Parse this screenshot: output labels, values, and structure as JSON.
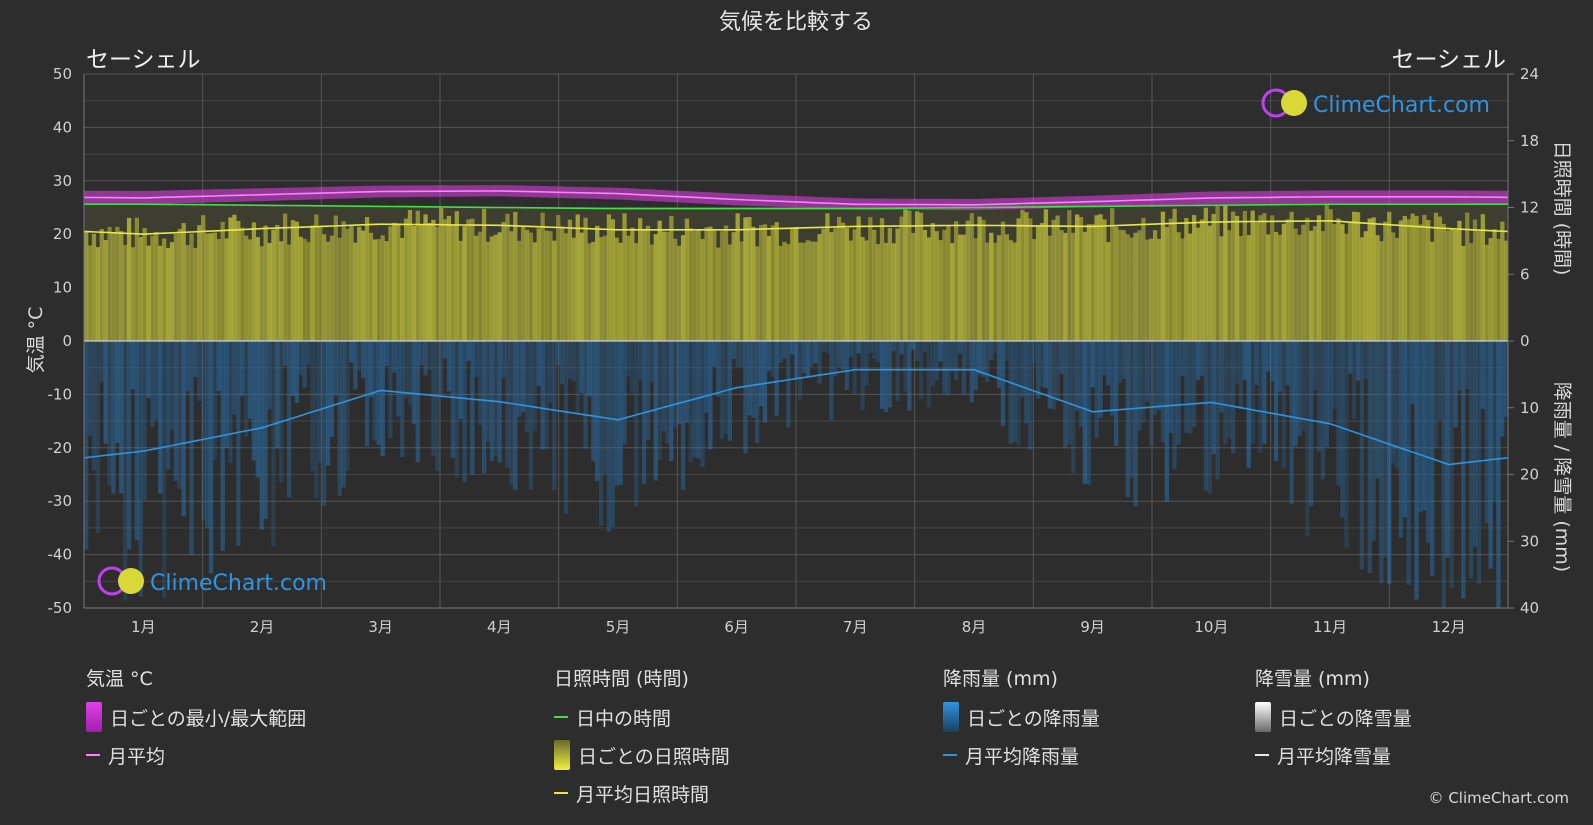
{
  "title": "気候を比較する",
  "location_left": "セーシェル",
  "location_right": "セーシェル",
  "logo_text": "ClimeChart.com",
  "copyright": "© ClimeChart.com",
  "colors": {
    "background": "#2d2d2d",
    "temp_range": "#e040e8",
    "temp_mean": "#ff80ff",
    "daylight": "#44dd44",
    "sunshine_fill": "#b8b83a",
    "sunshine_mean": "#e8e84a",
    "rain_fill": "#2a6ea8",
    "rain_mean": "#2f95e0",
    "logo_blue": "#2f95e0"
  },
  "legend": {
    "temperature": {
      "title": "気温 °C",
      "range": "日ごとの最小/最大範囲",
      "mean": "月平均"
    },
    "sunshine": {
      "title": "日照時間 (時間)",
      "daylight": "日中の時間",
      "daily": "日ごとの日照時間",
      "mean": "月平均日照時間"
    },
    "rain": {
      "title": "降雨量 (mm)",
      "daily": "日ごとの降雨量",
      "mean": "月平均降雨量"
    },
    "snow": {
      "title": "降雪量 (mm)",
      "daily": "日ごとの降雪量",
      "mean": "月平均降雪量"
    }
  },
  "chart_data": {
    "type": "line",
    "x": [
      "1月",
      "2月",
      "3月",
      "4月",
      "5月",
      "6月",
      "7月",
      "8月",
      "9月",
      "10月",
      "11月",
      "12月"
    ],
    "y_left": {
      "label": "気温 °C",
      "range": [
        -50,
        50
      ],
      "ticks": [
        50,
        40,
        30,
        20,
        10,
        0,
        -10,
        -20,
        -30,
        -40,
        -50
      ]
    },
    "y_right_top": {
      "label": "日照時間 (時間)",
      "range": [
        0,
        24
      ],
      "ticks": [
        24,
        18,
        12,
        6,
        0
      ]
    },
    "y_right_bottom": {
      "label": "降雨量 / 降雪量 (mm)",
      "range": [
        0,
        40
      ],
      "ticks": [
        0,
        10,
        20,
        30,
        40
      ]
    },
    "grid": true,
    "series": [
      {
        "name": "月平均",
        "axis": "temperature",
        "values": [
          26.8,
          27.4,
          28.0,
          28.1,
          27.6,
          26.5,
          25.6,
          25.5,
          26.1,
          26.8,
          27.0,
          27.0
        ]
      },
      {
        "name": "日ごとの最小/最大範囲",
        "axis": "temperature",
        "min": [
          25.6,
          26.2,
          26.9,
          27.1,
          26.5,
          25.4,
          24.6,
          24.5,
          25.1,
          25.6,
          25.8,
          25.8
        ],
        "max": [
          28.1,
          28.6,
          29.1,
          29.2,
          28.7,
          27.6,
          26.7,
          26.6,
          27.2,
          28.0,
          28.2,
          28.2
        ]
      },
      {
        "name": "日中の時間",
        "axis": "sunshine",
        "values": [
          12.3,
          12.2,
          12.1,
          12.0,
          11.9,
          11.9,
          11.9,
          12.0,
          12.1,
          12.2,
          12.3,
          12.3
        ]
      },
      {
        "name": "月平均日照時間",
        "axis": "sunshine",
        "values": [
          9.6,
          10.1,
          10.5,
          10.4,
          10.0,
          10.0,
          10.3,
          10.4,
          10.3,
          10.7,
          10.8,
          10.1
        ]
      },
      {
        "name": "月平均降雨量",
        "axis": "rain",
        "values": [
          16.5,
          13.0,
          7.4,
          9.1,
          11.8,
          7.0,
          4.3,
          4.3,
          10.6,
          9.2,
          12.4,
          18.5
        ]
      }
    ]
  }
}
